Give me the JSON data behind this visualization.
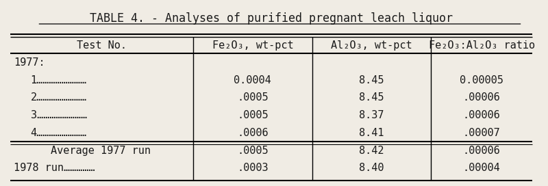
{
  "title": "TABLE 4. - Analyses of purified pregnant leach liquor",
  "col_headers": [
    "Test No.",
    "Fe₂O₃, wt-pct",
    "Al₂O₃, wt-pct",
    "Fe₂O₃:Al₂O₃ ratio"
  ],
  "rows": [
    {
      "label": "1977:",
      "fe": "",
      "al": "",
      "ratio": "",
      "bold": false,
      "is_year": true,
      "indent": 0
    },
    {
      "label": "1……………………",
      "fe": "0.0004",
      "al": "8.45",
      "ratio": "0.00005",
      "bold": false,
      "is_year": false,
      "indent": 1
    },
    {
      "label": "2……………………",
      "fe": ".0005",
      "al": "8.45",
      "ratio": ".00006",
      "bold": false,
      "is_year": false,
      "indent": 1
    },
    {
      "label": "3……………………",
      "fe": ".0005",
      "al": "8.37",
      "ratio": ".00006",
      "bold": false,
      "is_year": false,
      "indent": 1
    },
    {
      "label": "4……………………",
      "fe": ".0006",
      "al": "8.41",
      "ratio": ".00007",
      "bold": false,
      "is_year": false,
      "indent": 1
    },
    {
      "label": "Average 1977 run",
      "fe": ".0005",
      "al": "8.42",
      "ratio": ".00006",
      "bold": false,
      "is_year": false,
      "indent": 2,
      "thick_top": true
    },
    {
      "label": "1978 run……………",
      "fe": ".0003",
      "al": "8.40",
      "ratio": ".00004",
      "bold": false,
      "is_year": false,
      "indent": 0
    }
  ],
  "bg_color": "#f0ece4",
  "text_color": "#1a1a1a",
  "font_size": 11,
  "title_font_size": 12
}
